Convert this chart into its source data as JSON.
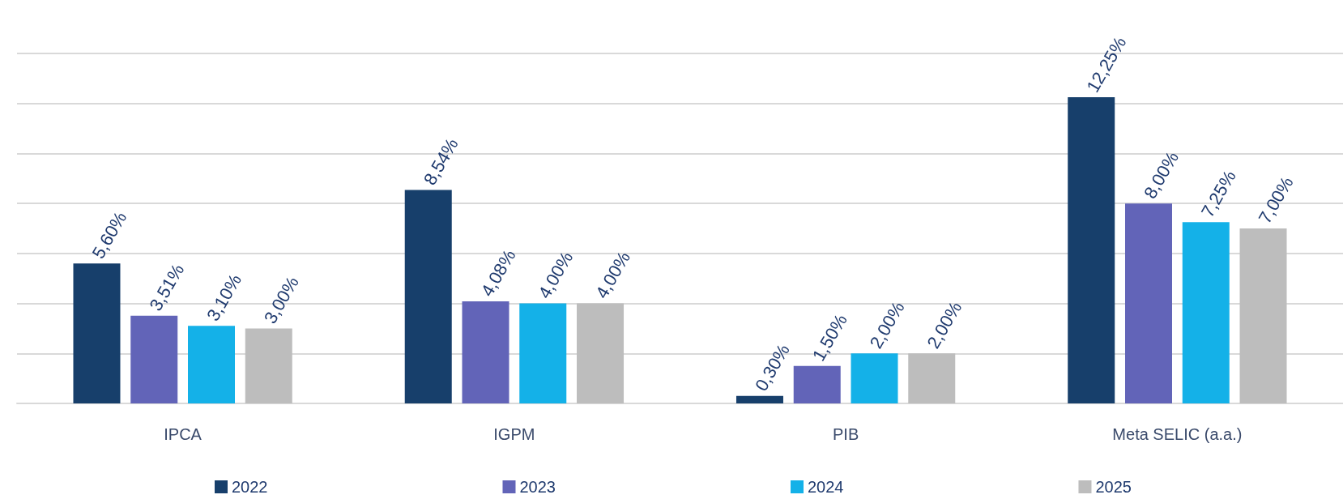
{
  "chart_data": {
    "type": "bar",
    "categories": [
      "IPCA",
      "IGPM",
      "PIB",
      "Meta SELIC (a.a.)"
    ],
    "series": [
      {
        "name": "2022",
        "color": "#173f6b",
        "values": [
          5.6,
          8.54,
          0.3,
          12.25
        ],
        "value_labels": [
          "5,60%",
          "8,54%",
          "0,30%",
          "12,25%"
        ]
      },
      {
        "name": "2023",
        "color": "#6264b8",
        "values": [
          3.51,
          4.08,
          1.5,
          8.0
        ],
        "value_labels": [
          "3,51%",
          "4,08%",
          "1,50%",
          "8,00%"
        ]
      },
      {
        "name": "2024",
        "color": "#14b1e8",
        "values": [
          3.1,
          4.0,
          2.0,
          7.25
        ],
        "value_labels": [
          "3,10%",
          "4,00%",
          "2,00%",
          "7,25%"
        ]
      },
      {
        "name": "2025",
        "color": "#bdbdbd",
        "values": [
          3.0,
          4.0,
          2.0,
          7.0
        ],
        "value_labels": [
          "3,00%",
          "4,00%",
          "2,00%",
          "7,00%"
        ]
      }
    ],
    "ylim": [
      0,
      14
    ],
    "yticks": [
      {
        "value": 0,
        "label": null
      },
      {
        "value": 2,
        "label": null
      },
      {
        "value": 4,
        "label": null
      },
      {
        "value": 6,
        "label": null
      },
      {
        "value": 8,
        "label": null
      },
      {
        "value": 10,
        "label": null
      },
      {
        "value": 12,
        "label": null
      },
      {
        "value": 14,
        "label": null
      }
    ],
    "grid": "y",
    "legend": "bottom",
    "tick_labels": "x"
  }
}
